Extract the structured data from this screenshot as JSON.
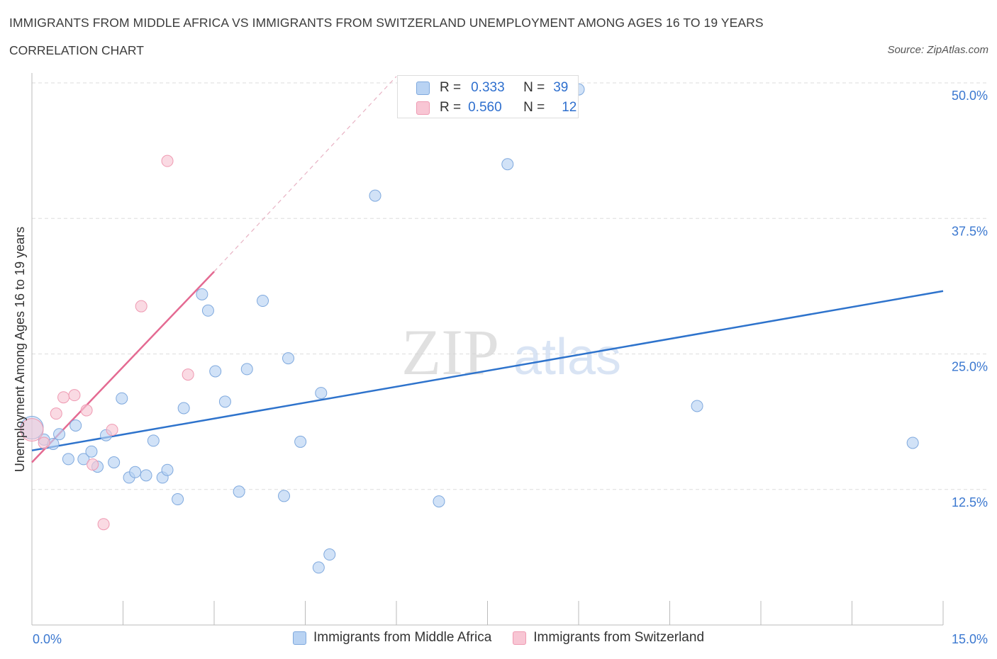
{
  "header": {
    "title": "IMMIGRANTS FROM MIDDLE AFRICA VS IMMIGRANTS FROM SWITZERLAND UNEMPLOYMENT AMONG AGES 16 TO 19 YEARS",
    "subtitle": "CORRELATION CHART",
    "source": "Source: ZipAtlas.com"
  },
  "colors": {
    "blue_fill": "#b9d3f3",
    "blue_stroke": "#7fa9de",
    "blue_line": "#2e73cc",
    "pink_fill": "#f8c6d4",
    "pink_stroke": "#ef9ab2",
    "pink_line": "#e46a92",
    "tick_text": "#3b78d0",
    "grid": "#dddddd"
  },
  "watermark": {
    "zip": "ZIP",
    "atlas": "atlas"
  },
  "stats": {
    "r_label": "R =",
    "n_label": "N =",
    "series": [
      {
        "r": "0.333",
        "n": "39"
      },
      {
        "r": "0.560",
        "n": "12"
      }
    ]
  },
  "chart_data": {
    "type": "scatter",
    "xlabel": "",
    "ylabel": "Unemployment Among Ages 16 to 19 years",
    "xlim": [
      0,
      15
    ],
    "ylim": [
      0,
      50
    ],
    "x_tick_labels": [
      "0.0%",
      "15.0%"
    ],
    "y_ticks": [
      12.5,
      25.0,
      37.5,
      50.0
    ],
    "y_tick_labels": [
      "12.5%",
      "25.0%",
      "37.5%",
      "50.0%"
    ],
    "legend_position": "bottom-center",
    "series": [
      {
        "name": "Immigrants from Middle Africa",
        "color": "#b9d3f3",
        "points": [
          [
            0.0,
            18.2
          ],
          [
            0.2,
            17.1
          ],
          [
            0.35,
            16.7
          ],
          [
            0.45,
            17.6
          ],
          [
            0.6,
            15.3
          ],
          [
            0.72,
            18.4
          ],
          [
            0.85,
            15.3
          ],
          [
            0.98,
            16.0
          ],
          [
            1.08,
            14.6
          ],
          [
            1.22,
            17.5
          ],
          [
            1.35,
            15.0
          ],
          [
            1.48,
            20.9
          ],
          [
            1.6,
            13.6
          ],
          [
            1.7,
            14.1
          ],
          [
            1.88,
            13.8
          ],
          [
            2.0,
            17.0
          ],
          [
            2.15,
            13.6
          ],
          [
            2.23,
            14.3
          ],
          [
            2.4,
            11.6
          ],
          [
            2.5,
            20.0
          ],
          [
            2.8,
            30.5
          ],
          [
            2.9,
            29.0
          ],
          [
            3.02,
            23.4
          ],
          [
            3.18,
            20.6
          ],
          [
            3.41,
            12.3
          ],
          [
            3.54,
            23.6
          ],
          [
            3.8,
            29.9
          ],
          [
            4.15,
            11.9
          ],
          [
            4.22,
            24.6
          ],
          [
            4.42,
            16.9
          ],
          [
            4.72,
            5.3
          ],
          [
            4.76,
            21.4
          ],
          [
            4.9,
            6.5
          ],
          [
            5.65,
            39.6
          ],
          [
            6.7,
            11.4
          ],
          [
            7.83,
            42.5
          ],
          [
            9.0,
            49.4
          ],
          [
            10.95,
            20.2
          ],
          [
            14.5,
            16.8
          ]
        ]
      },
      {
        "name": "Immigrants from Switzerland",
        "color": "#f8c6d4",
        "points": [
          [
            0.0,
            18.0
          ],
          [
            0.2,
            16.8
          ],
          [
            0.4,
            19.5
          ],
          [
            0.52,
            21.0
          ],
          [
            0.7,
            21.2
          ],
          [
            0.9,
            19.8
          ],
          [
            1.0,
            14.8
          ],
          [
            1.18,
            9.3
          ],
          [
            1.32,
            18.0
          ],
          [
            1.8,
            29.4
          ],
          [
            2.23,
            42.8
          ],
          [
            2.57,
            23.1
          ]
        ]
      }
    ],
    "trend_lines": [
      {
        "series": "Immigrants from Middle Africa",
        "x": [
          0.0,
          15.0
        ],
        "y": [
          16.1,
          30.8
        ]
      },
      {
        "series": "Immigrants from Switzerland",
        "x": [
          0.0,
          3.0
        ],
        "y": [
          15.0,
          32.6
        ],
        "dashed_extension_x": [
          3.0,
          6.0
        ],
        "dashed_extension_y": [
          32.6,
          50.6
        ]
      }
    ]
  },
  "legend": {
    "items": [
      {
        "label": "Immigrants from Middle Africa"
      },
      {
        "label": "Immigrants from Switzerland"
      }
    ]
  }
}
